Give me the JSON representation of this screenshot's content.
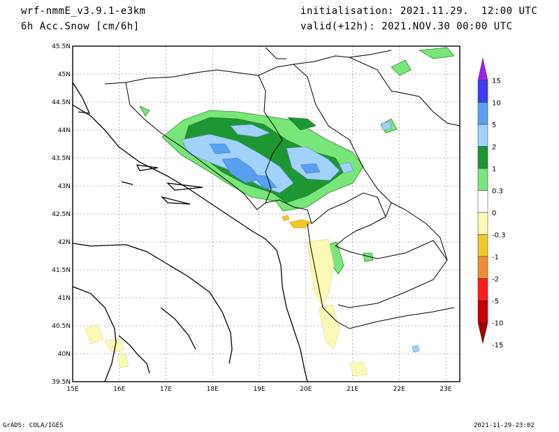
{
  "header": {
    "model": "wrf-nmmE_v3.9.1-e3km",
    "field": "6h Acc.Snow [cm/6h]",
    "init": "initialisation: 2021.11.29.  12:00 UTC",
    "valid": "valid(+12h): 2021.NOV.30 00:00 UTC"
  },
  "map": {
    "lon_range": [
      15,
      23.3
    ],
    "lat_range": [
      39.5,
      45.5
    ],
    "lon_ticks": [
      "15E",
      "16E",
      "17E",
      "18E",
      "19E",
      "20E",
      "21E",
      "22E",
      "23E"
    ],
    "lat_ticks": [
      "39.5N",
      "40N",
      "40.5N",
      "41N",
      "41.5N",
      "42N",
      "42.5N",
      "43N",
      "43.5N",
      "44N",
      "44.5N",
      "45N",
      "45.5N"
    ],
    "grid": true
  },
  "legend": {
    "labels": [
      "15",
      "10",
      "5",
      "2",
      "1",
      "0.3",
      "0",
      "-0.3",
      "-1",
      "-2",
      "-5",
      "-10",
      "-15"
    ],
    "colors": [
      "#a020f0",
      "#3c3cf5",
      "#5aa0f0",
      "#a0d2fa",
      "#1e9632",
      "#78e678",
      "#ffffff",
      "#fafab4",
      "#f0c828",
      "#f08c32",
      "#ff1a1a",
      "#c80000",
      "#a00000"
    ]
  },
  "footer": {
    "left": "GrADS: COLA/IGES",
    "right": "2021-11-29-23:02"
  }
}
